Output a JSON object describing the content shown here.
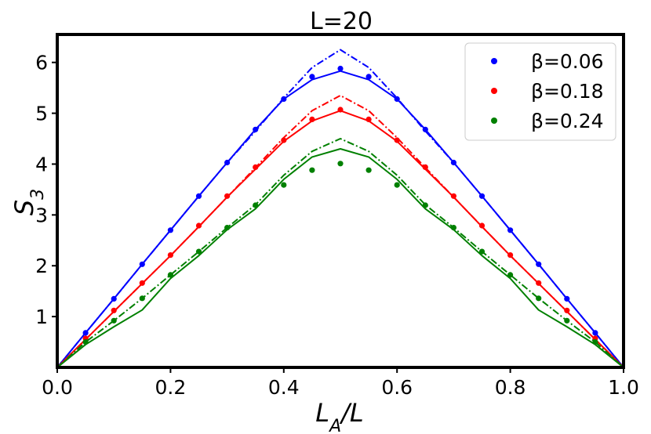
{
  "chart_data": {
    "type": "line",
    "title": "L=20",
    "xlabel": {
      "main": "L",
      "sub": "A",
      "rest": "/L"
    },
    "ylabel": {
      "main": "S",
      "sub": "3"
    },
    "xlim": [
      0.0,
      1.0
    ],
    "ylim": [
      0.0,
      6.55
    ],
    "xticks": [
      0.0,
      0.2,
      0.4,
      0.6,
      0.8,
      1.0
    ],
    "xtick_labels": [
      "0.0",
      "0.2",
      "0.4",
      "0.6",
      "0.8",
      "1.0"
    ],
    "yticks": [
      1,
      2,
      3,
      4,
      5,
      6
    ],
    "ytick_labels": [
      "1",
      "2",
      "3",
      "4",
      "5",
      "6"
    ],
    "legend_position": "top-right",
    "x": [
      0.0,
      0.05,
      0.1,
      0.15,
      0.2,
      0.25,
      0.3,
      0.35,
      0.4,
      0.45,
      0.5,
      0.55,
      0.6,
      0.65,
      0.7,
      0.75,
      0.8,
      0.85,
      0.9,
      0.95,
      1.0
    ],
    "series": [
      {
        "name": "β=0.06",
        "color": "#0000ff",
        "points": [
          0.68,
          1.35,
          2.03,
          2.7,
          3.37,
          4.03,
          4.68,
          5.28,
          5.72,
          5.88,
          5.72,
          5.28,
          4.68,
          4.03,
          3.37,
          2.7,
          2.03,
          1.35,
          0.68
        ],
        "solid": [
          0.0,
          0.68,
          1.35,
          2.03,
          2.7,
          3.37,
          4.03,
          4.68,
          5.28,
          5.66,
          5.83,
          5.66,
          5.28,
          4.68,
          4.03,
          3.37,
          2.7,
          2.03,
          1.35,
          0.68,
          0.0
        ],
        "dashdot": [
          0.0,
          0.68,
          1.35,
          2.03,
          2.7,
          3.37,
          4.03,
          4.65,
          5.3,
          5.9,
          6.25,
          5.9,
          5.3,
          4.65,
          4.03,
          3.37,
          2.7,
          2.03,
          1.35,
          0.68,
          0.0
        ]
      },
      {
        "name": "β=0.18",
        "color": "#ff0000",
        "points": [
          0.57,
          1.12,
          1.66,
          2.21,
          2.79,
          3.37,
          3.94,
          4.47,
          4.88,
          5.07,
          4.88,
          4.47,
          3.94,
          3.37,
          2.79,
          2.21,
          1.66,
          1.12,
          0.57
        ],
        "solid": [
          0.0,
          0.55,
          1.1,
          1.65,
          2.2,
          2.77,
          3.35,
          3.9,
          4.45,
          4.85,
          5.05,
          4.85,
          4.45,
          3.9,
          3.35,
          2.77,
          2.2,
          1.65,
          1.1,
          0.55,
          0.0
        ],
        "dashdot": [
          0.0,
          0.55,
          1.1,
          1.65,
          2.2,
          2.77,
          3.35,
          3.93,
          4.52,
          5.05,
          5.35,
          5.05,
          4.52,
          3.93,
          3.35,
          2.77,
          2.2,
          1.65,
          1.1,
          0.55,
          0.0
        ]
      },
      {
        "name": "β=0.24",
        "color": "#008000",
        "points": [
          0.5,
          0.92,
          1.36,
          1.82,
          2.28,
          2.75,
          3.19,
          3.59,
          3.88,
          4.01,
          3.88,
          3.59,
          3.19,
          2.75,
          2.28,
          1.82,
          1.36,
          0.92,
          0.5
        ],
        "solid": [
          0.0,
          0.45,
          0.8,
          1.13,
          1.75,
          2.2,
          2.71,
          3.12,
          3.7,
          4.14,
          4.3,
          4.14,
          3.7,
          3.12,
          2.71,
          2.2,
          1.75,
          1.13,
          0.8,
          0.45,
          0.0
        ],
        "dashdot": [
          0.0,
          0.5,
          0.92,
          1.36,
          1.82,
          2.28,
          2.75,
          3.2,
          3.78,
          4.25,
          4.5,
          4.25,
          3.78,
          3.2,
          2.75,
          2.28,
          1.82,
          1.36,
          0.92,
          0.5,
          0.0
        ]
      }
    ]
  }
}
